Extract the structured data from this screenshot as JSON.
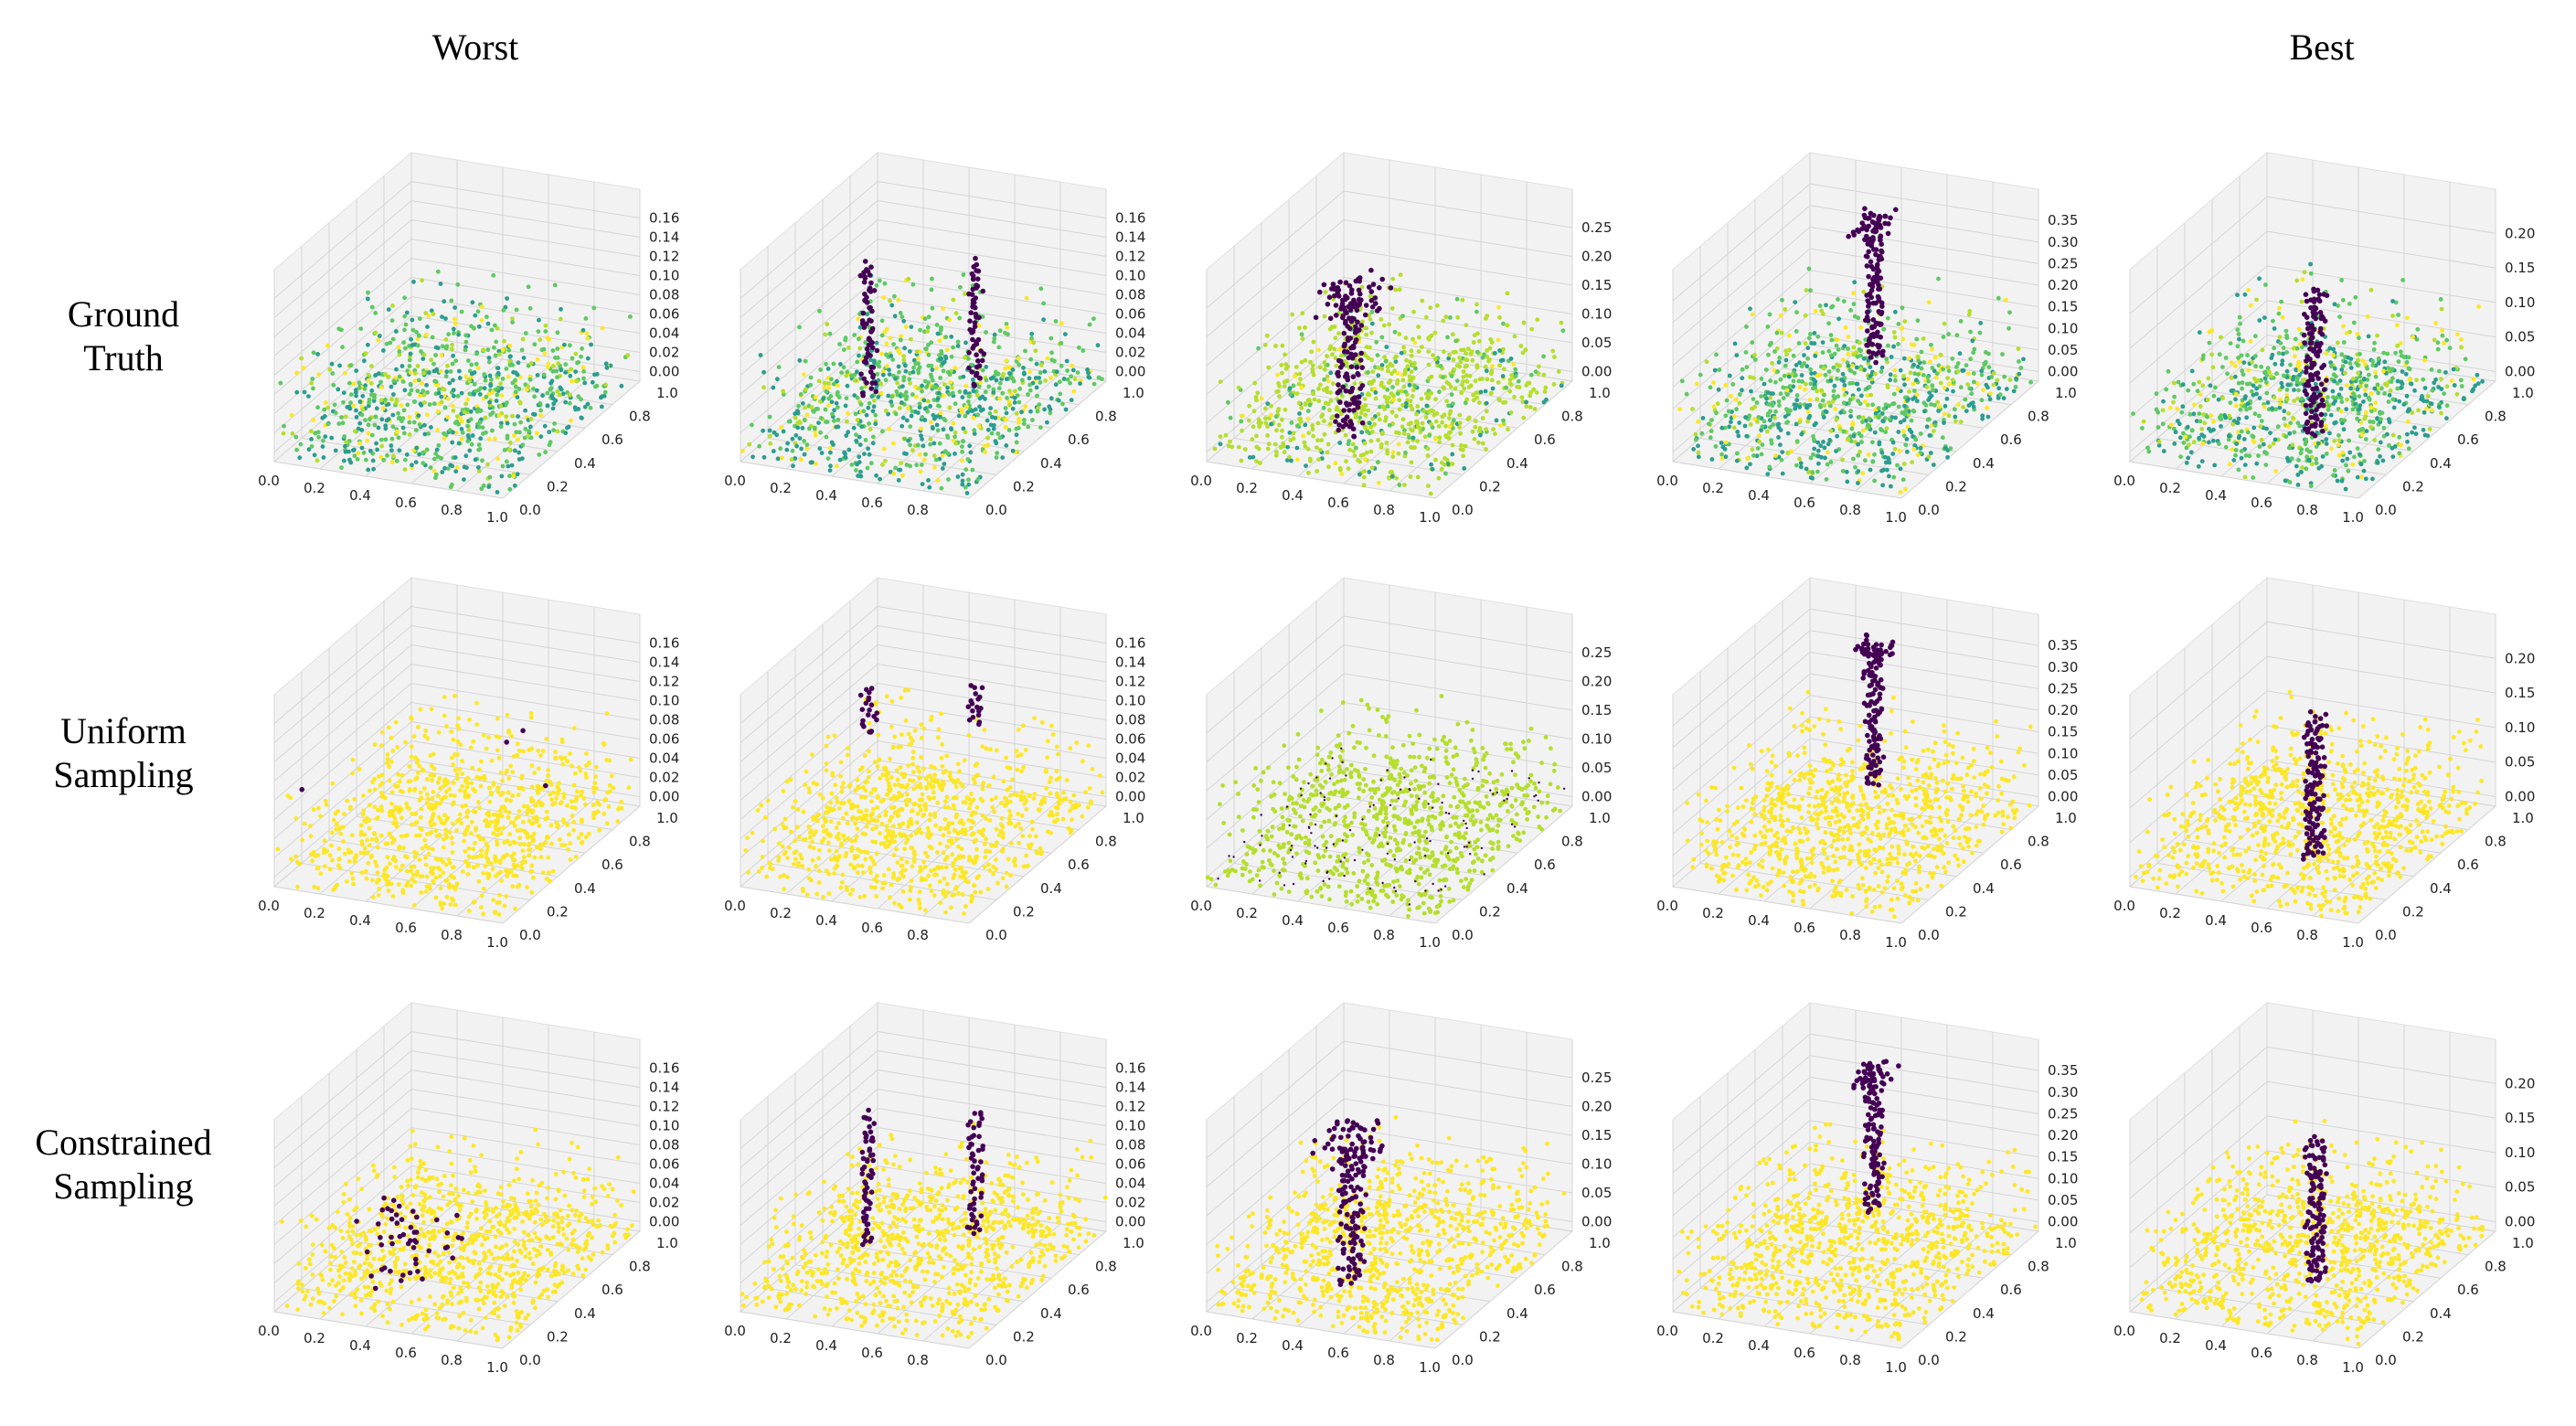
{
  "column_headers": {
    "first": "Worst",
    "last": "Best"
  },
  "row_labels": [
    [
      "Ground",
      "Truth"
    ],
    [
      "Uniform",
      "Sampling"
    ],
    [
      "Constrained",
      "Sampling"
    ]
  ],
  "colors": {
    "purple": "#440154",
    "teal": "#2a9d8f",
    "green": "#5ec962",
    "lime": "#b5de2b",
    "yellow": "#fde725",
    "pane": "#f2f2f2",
    "grid": "#d5d5d5"
  },
  "chart_data": {
    "type": "scatter",
    "projection": "3d",
    "grid": true,
    "axes": {
      "x": {
        "range": [
          0,
          1.0
        ],
        "ticks": [
          "0.0",
          "0.2",
          "0.4",
          "0.6",
          "0.8",
          "1.0"
        ]
      },
      "y": {
        "range": [
          0,
          1.0
        ],
        "ticks": [
          "0.0",
          "0.2",
          "0.4",
          "0.6",
          "0.8",
          "1.0"
        ]
      }
    },
    "z_ticks_by_column": [
      [
        "0.00",
        "0.02",
        "0.04",
        "0.06",
        "0.08",
        "0.10",
        "0.12",
        "0.14",
        "0.16"
      ],
      [
        "0.00",
        "0.02",
        "0.04",
        "0.06",
        "0.08",
        "0.10",
        "0.12",
        "0.14",
        "0.16"
      ],
      [
        "0.00",
        "0.05",
        "0.10",
        "0.15",
        "0.20",
        "0.25"
      ],
      [
        "0.00",
        "0.05",
        "0.10",
        "0.15",
        "0.20",
        "0.25",
        "0.30",
        "0.35"
      ],
      [
        "0.00",
        "0.05",
        "0.10",
        "0.15",
        "0.20"
      ]
    ],
    "x_ticks_shown_by_column": [
      [
        "0.0",
        "0.2",
        "0.4",
        "0.6",
        "0.8",
        "1.0"
      ],
      [
        "0.0",
        "0.2",
        "0.4",
        "0.6",
        "0.8"
      ],
      [
        "0.0",
        "0.2",
        "0.4",
        "0.6",
        "0.8",
        "1.0"
      ],
      [
        "0.0",
        "0.2",
        "0.4",
        "0.6",
        "0.8",
        "1.0"
      ],
      [
        "0.0",
        "0.2",
        "0.4",
        "0.6",
        "0.8",
        "1.0"
      ]
    ],
    "y_ticks_shown_by_column": [
      [
        "0.0",
        "0.2",
        "0.4",
        "0.6",
        "0.8",
        "1.0"
      ],
      [
        "0.0",
        "0.2",
        "0.4",
        "0.6",
        "0.8",
        "1.0"
      ],
      [
        "0.0",
        "0.2",
        "0.4",
        "0.6",
        "0.8",
        "1.0"
      ],
      [
        "0.0",
        "0.2",
        "0.4",
        "0.6",
        "0.8",
        "1.0"
      ],
      [
        "0.0",
        "0.2",
        "0.4",
        "0.6",
        "0.8",
        "1.0"
      ]
    ],
    "panels": [
      {
        "row": 0,
        "col": 0,
        "dominant": "green",
        "purple_structure": "none",
        "z_max": 0.16
      },
      {
        "row": 0,
        "col": 1,
        "dominant": "green",
        "purple_structure": "two_poles",
        "z_max": 0.16
      },
      {
        "row": 0,
        "col": 2,
        "dominant": "lime",
        "purple_structure": "tree",
        "z_max": 0.27
      },
      {
        "row": 0,
        "col": 3,
        "dominant": "green",
        "purple_structure": "tall_pole",
        "z_max": 0.36
      },
      {
        "row": 0,
        "col": 4,
        "dominant": "green",
        "purple_structure": "trunk",
        "z_max": 0.22
      },
      {
        "row": 1,
        "col": 0,
        "dominant": "yellow",
        "purple_structure": "few",
        "z_max": 0.16
      },
      {
        "row": 1,
        "col": 1,
        "dominant": "yellow",
        "purple_structure": "two_poles_top",
        "z_max": 0.16
      },
      {
        "row": 1,
        "col": 2,
        "dominant": "lime",
        "purple_structure": "dotted",
        "z_max": 0.27
      },
      {
        "row": 1,
        "col": 3,
        "dominant": "yellow",
        "purple_structure": "tall_pole",
        "z_max": 0.36
      },
      {
        "row": 1,
        "col": 4,
        "dominant": "yellow",
        "purple_structure": "trunk",
        "z_max": 0.22
      },
      {
        "row": 2,
        "col": 0,
        "dominant": "yellow",
        "purple_structure": "cluster",
        "z_max": 0.16
      },
      {
        "row": 2,
        "col": 1,
        "dominant": "yellow",
        "purple_structure": "two_poles",
        "z_max": 0.16
      },
      {
        "row": 2,
        "col": 2,
        "dominant": "yellow",
        "purple_structure": "tree",
        "z_max": 0.27
      },
      {
        "row": 2,
        "col": 3,
        "dominant": "yellow",
        "purple_structure": "tall_pole",
        "z_max": 0.36
      },
      {
        "row": 2,
        "col": 4,
        "dominant": "yellow",
        "purple_structure": "trunk",
        "z_max": 0.22
      }
    ]
  }
}
